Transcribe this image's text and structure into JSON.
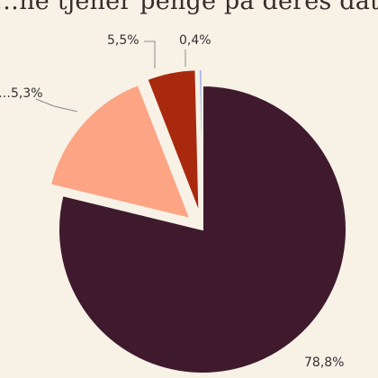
{
  "chart_data": {
    "type": "pie",
    "title": "…ne tjener penge på deres data",
    "slices": [
      {
        "label": "78,8%",
        "value": 78.8,
        "color": "#3f1a2d",
        "exploded": false
      },
      {
        "label": "…5,3%",
        "value": 15.3,
        "color": "#fca484",
        "exploded": true
      },
      {
        "label": "5,5%",
        "value": 5.5,
        "color": "#a8290e",
        "exploded": true
      },
      {
        "label": "0,4%",
        "value": 0.4,
        "color": "#a9b8e8",
        "exploded": true
      }
    ],
    "start_angle_deg": 0,
    "direction": "clockwise",
    "legend": "none"
  }
}
